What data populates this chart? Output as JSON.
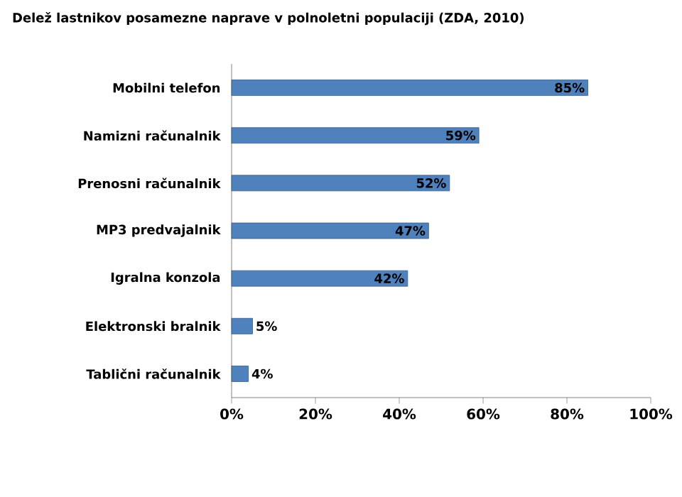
{
  "chart_data": {
    "type": "bar",
    "orientation": "horizontal",
    "title": "Delež lastnikov posamezne naprave v polnoletni populaciji (ZDA, 2010)",
    "categories": [
      "Mobilni telefon",
      "Namizni računalnik",
      "Prenosni računalnik",
      "MP3 predvajalnik",
      "Igralna konzola",
      "Elektronski bralnik",
      "Tablični računalnik"
    ],
    "values": [
      85,
      59,
      52,
      47,
      42,
      5,
      4
    ],
    "value_labels": [
      "85%",
      "59%",
      "52%",
      "47%",
      "42%",
      "5%",
      "4%"
    ],
    "color": "#4f81bd",
    "xlim": [
      0,
      100
    ],
    "xticks": [
      {
        "value": 0,
        "label": "0%"
      },
      {
        "value": 20,
        "label": "20%"
      },
      {
        "value": 40,
        "label": "40%"
      },
      {
        "value": 60,
        "label": "60%"
      },
      {
        "value": 80,
        "label": "80%"
      },
      {
        "value": 100,
        "label": "100%"
      }
    ],
    "grid": false
  }
}
